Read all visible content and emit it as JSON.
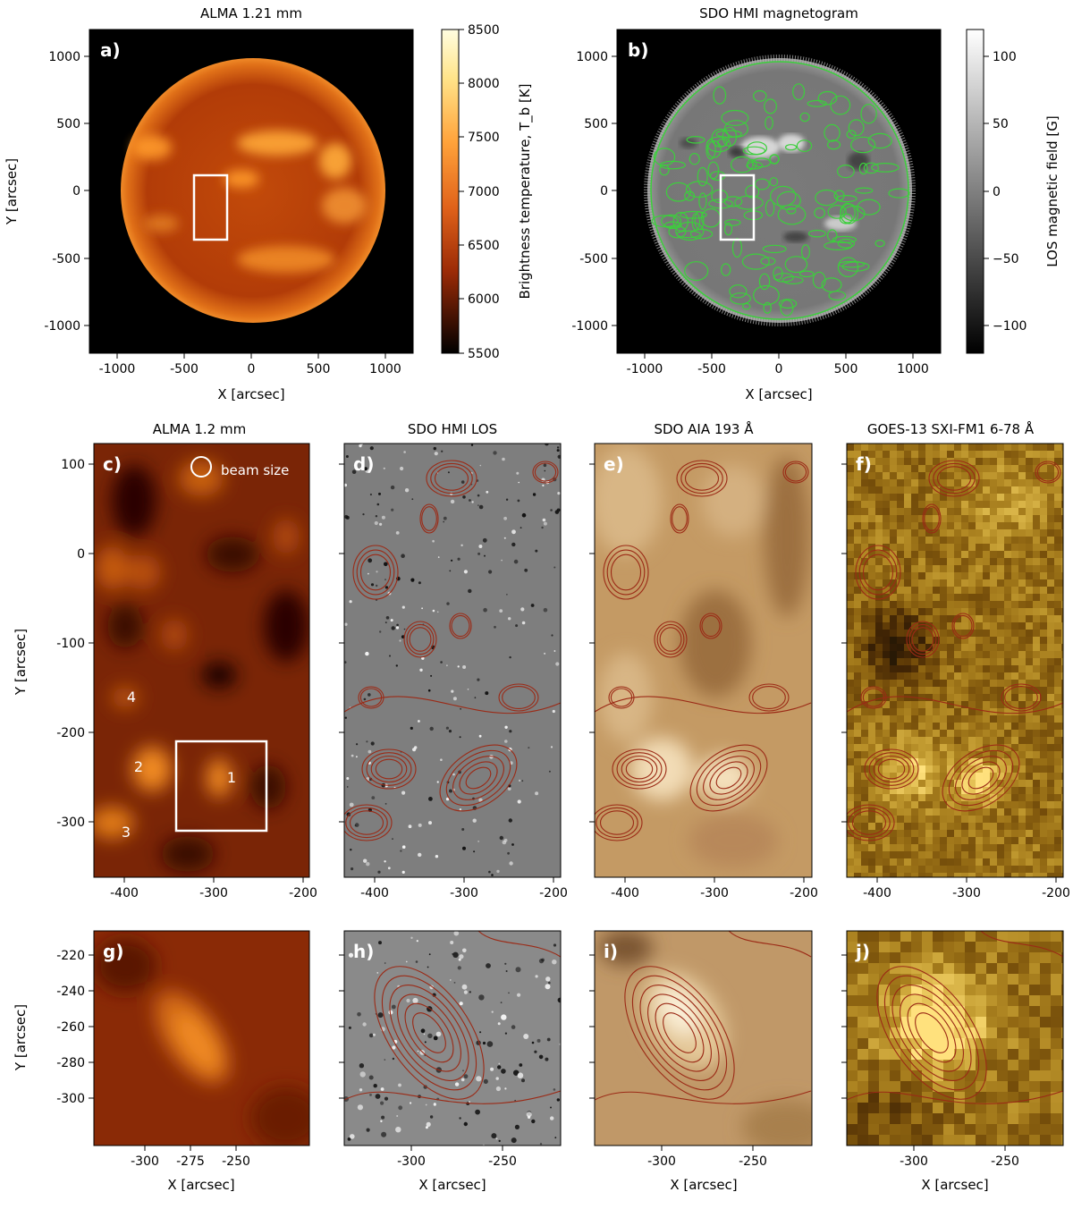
{
  "panel_a": {
    "title": "ALMA 1.21 mm",
    "letter": "a)",
    "x_label": "X [arcsec]",
    "y_label": "Y [arcsec]",
    "x_ticks": [
      "-1000",
      "-500",
      "0",
      "500",
      "1000"
    ],
    "y_ticks": [
      "1000",
      "500",
      "0",
      "-500",
      "-1000"
    ],
    "colorbar_label": "Brightness temperature, T_b [K]",
    "colorbar_ticks": [
      "8500",
      "8000",
      "7500",
      "7000",
      "6500",
      "6000",
      "5500"
    ]
  },
  "panel_b": {
    "title": "SDO HMI magnetogram",
    "letter": "b)",
    "x_label": "X [arcsec]",
    "x_ticks": [
      "-1000",
      "-500",
      "0",
      "500",
      "1000"
    ],
    "y_ticks": [
      "1000",
      "500",
      "0",
      "-500",
      "-1000"
    ],
    "colorbar_label": "LOS magnetic field [G]",
    "colorbar_ticks": [
      "100",
      "50",
      "0",
      "−50",
      "−100"
    ]
  },
  "panel_c": {
    "title": "ALMA 1.2 mm",
    "letter": "c)",
    "beam_label": "beam size",
    "labels": [
      "1",
      "2",
      "3",
      "4"
    ],
    "x_ticks": [
      "-400",
      "-300",
      "-200"
    ],
    "y_ticks": [
      "100",
      "0",
      "-100",
      "-200",
      "-300"
    ],
    "y_label": "Y [arcsec]"
  },
  "panel_d": {
    "title": "SDO HMI LOS",
    "letter": "d)",
    "x_ticks": [
      "-400",
      "-300",
      "-200"
    ]
  },
  "panel_e": {
    "title": "SDO AIA 193 Å",
    "letter": "e)",
    "x_ticks": [
      "-400",
      "-300",
      "-200"
    ]
  },
  "panel_f": {
    "title": "GOES-13 SXI-FM1 6-78 Å",
    "letter": "f)",
    "x_ticks": [
      "-400",
      "-300",
      "-200"
    ]
  },
  "panel_g": {
    "letter": "g)",
    "y_label": "Y [arcsec]",
    "y_ticks": [
      "-220",
      "-240",
      "-260",
      "-280",
      "-300"
    ],
    "x_ticks": [
      "-300",
      "-275",
      "-250"
    ],
    "x_label": "X [arcsec]"
  },
  "panel_h": {
    "letter": "h)",
    "x_ticks": [
      "-300",
      "-250"
    ],
    "x_label": "X [arcsec]"
  },
  "panel_i": {
    "letter": "i)",
    "x_ticks": [
      "-300",
      "-250"
    ],
    "x_label": "X [arcsec]"
  },
  "panel_j": {
    "letter": "j)",
    "x_ticks": [
      "-300",
      "-250"
    ],
    "x_label": "X [arcsec]"
  },
  "colors": {
    "alma_dark": "#2a0500",
    "alma_mid": "#b33a00",
    "alma_bright": "#ffa020",
    "contour": "#9b2a16",
    "hmi_contour": "#3ccf3c",
    "aia_base": "#c49a64",
    "sxi_base": "#8a6a10"
  }
}
